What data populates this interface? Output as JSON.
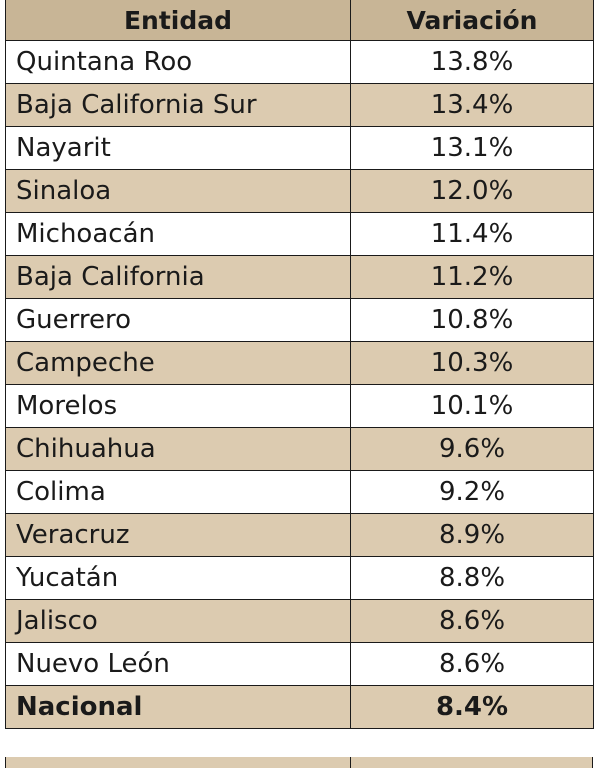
{
  "table": {
    "headers": [
      "Entidad",
      "Variación"
    ],
    "rows": [
      {
        "entidad": "Quintana Roo",
        "variacion": "13.8%"
      },
      {
        "entidad": "Baja California Sur",
        "variacion": "13.4%"
      },
      {
        "entidad": "Nayarit",
        "variacion": "13.1%"
      },
      {
        "entidad": "Sinaloa",
        "variacion": "12.0%"
      },
      {
        "entidad": "Michoacán",
        "variacion": "11.4%"
      },
      {
        "entidad": "Baja California",
        "variacion": "11.2%"
      },
      {
        "entidad": "Guerrero",
        "variacion": "10.8%"
      },
      {
        "entidad": "Campeche",
        "variacion": "10.3%"
      },
      {
        "entidad": "Morelos",
        "variacion": "10.1%"
      },
      {
        "entidad": "Chihuahua",
        "variacion": "9.6%"
      },
      {
        "entidad": "Colima",
        "variacion": "9.2%"
      },
      {
        "entidad": "Veracruz",
        "variacion": "8.9%"
      },
      {
        "entidad": "Yucatán",
        "variacion": "8.8%"
      },
      {
        "entidad": "Jalisco",
        "variacion": "8.6%"
      },
      {
        "entidad": "Nuevo León",
        "variacion": "8.6%"
      }
    ],
    "total": {
      "entidad": "Nacional",
      "variacion": "8.4%"
    }
  },
  "colors": {
    "header_bg": "#c8b596",
    "shaded_row_bg": "#dccbb0",
    "plain_row_bg": "#ffffff",
    "border": "#1a1a1a",
    "text": "#1a1a1a"
  }
}
